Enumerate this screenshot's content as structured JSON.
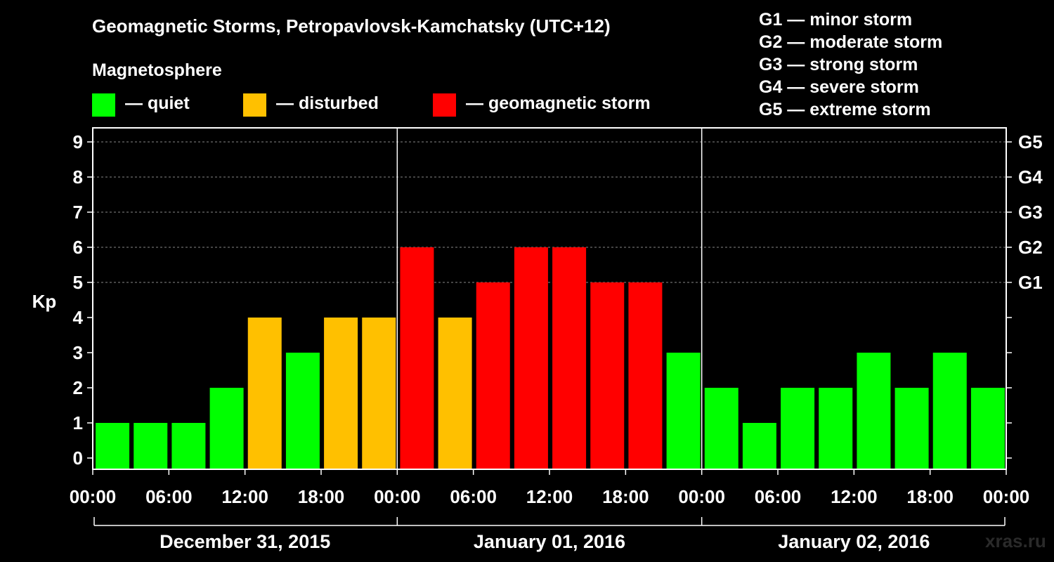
{
  "title": "Geomagnetic Storms, Petropavlovsk-Kamchatsky (UTC+12)",
  "magnetosphere_label": "Magnetosphere",
  "legend": [
    {
      "label": "— quiet",
      "color": "#00ff00"
    },
    {
      "label": "— disturbed",
      "color": "#ffc000"
    },
    {
      "label": "— geomagnetic storm",
      "color": "#ff0000"
    }
  ],
  "g_legend": [
    "G1 — minor storm",
    "G2 — moderate storm",
    "G3 — strong storm",
    "G4 — severe storm",
    "G5 — extreme storm"
  ],
  "watermark": "xras.ru",
  "chart_data": {
    "type": "bar",
    "title": "Geomagnetic Storms, Petropavlovsk-Kamchatsky (UTC+12)",
    "ylabel": "Kp",
    "xlabel": "",
    "ylim": [
      0,
      9
    ],
    "yticks": [
      "0",
      "1",
      "2",
      "3",
      "4",
      "5",
      "6",
      "7",
      "8",
      "9"
    ],
    "right_ticks": [
      {
        "value": 5,
        "label": "G1"
      },
      {
        "value": 6,
        "label": "G2"
      },
      {
        "value": 7,
        "label": "G3"
      },
      {
        "value": 8,
        "label": "G4"
      },
      {
        "value": 9,
        "label": "G5"
      }
    ],
    "interval_hours": 3,
    "values": [
      1,
      1,
      1,
      2,
      4,
      3,
      4,
      4,
      6,
      4,
      5,
      6,
      6,
      5,
      5,
      3,
      2,
      1,
      2,
      2,
      3,
      2,
      3,
      2
    ],
    "xtick_labels": [
      "00:00",
      "06:00",
      "12:00",
      "18:00",
      "00:00",
      "06:00",
      "12:00",
      "18:00",
      "00:00",
      "06:00",
      "12:00",
      "18:00",
      "00:00"
    ],
    "days": [
      "December 31, 2015",
      "January 01, 2016",
      "January 02, 2016"
    ],
    "colors": {
      "quiet": "#00ff00",
      "disturbed": "#ffc000",
      "storm": "#ff0000"
    },
    "grid": true
  }
}
